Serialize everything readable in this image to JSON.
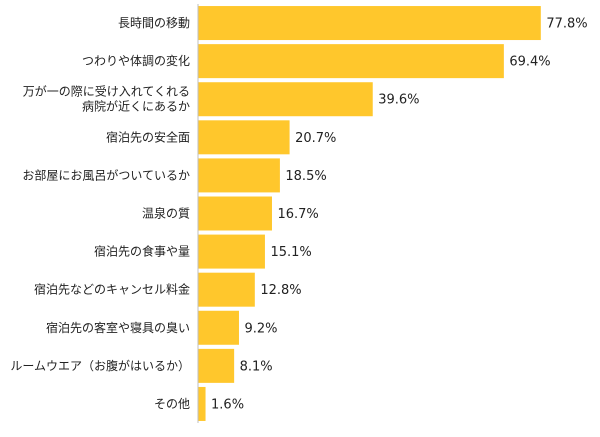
{
  "chart_data": {
    "type": "bar",
    "orientation": "horizontal",
    "categories": [
      "長時間の移動",
      "つわりや体調の変化",
      "万が一の際に受け入れてくれる病院が近くにあるか",
      "宿泊先の安全面",
      "お部屋にお風呂がついているか",
      "温泉の質",
      "宿泊先の食事や量",
      "宿泊先などのキャンセル料金",
      "宿泊先の客室や寝具の臭い",
      "ルームウエア（お腹がはいるか）",
      "その他"
    ],
    "category_lines": [
      [
        "長時間の移動"
      ],
      [
        "つわりや体調の変化"
      ],
      [
        "万が一の際に受け入れてくれる",
        "病院が近くにあるか"
      ],
      [
        "宿泊先の安全面"
      ],
      [
        "お部屋にお風呂がついているか"
      ],
      [
        "温泉の質"
      ],
      [
        "宿泊先の食事や量"
      ],
      [
        "宿泊先などのキャンセル料金"
      ],
      [
        "宿泊先の客室や寝具の臭い"
      ],
      [
        "ルームウエア（お腹がはいるか）"
      ],
      [
        "その他"
      ]
    ],
    "values": [
      77.8,
      69.4,
      39.6,
      20.7,
      18.5,
      16.7,
      15.1,
      12.8,
      9.2,
      8.1,
      1.6
    ],
    "value_labels": [
      "77.8%",
      "69.4%",
      "39.6%",
      "20.7%",
      "18.5%",
      "16.7%",
      "15.1%",
      "12.8%",
      "9.2%",
      "8.1%",
      "1.6%"
    ],
    "xlim": [
      0,
      100
    ],
    "grid": false,
    "bar_color": "#FFC72C",
    "axis_color": "#bfbfbf",
    "text_color": "#222222"
  }
}
